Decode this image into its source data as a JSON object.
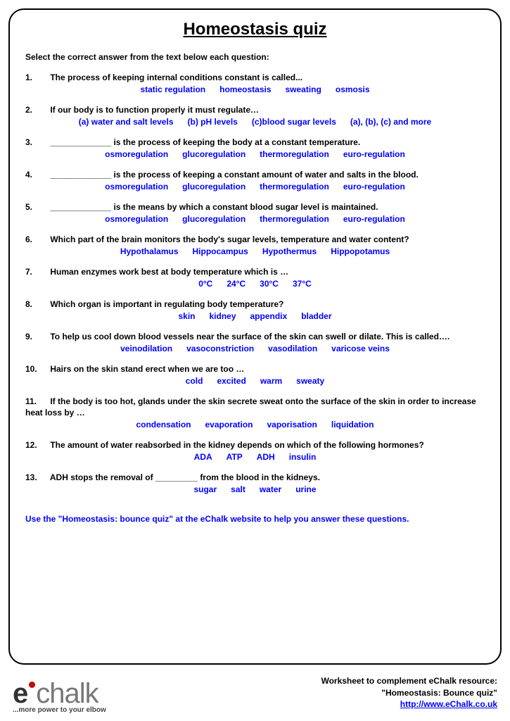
{
  "colors": {
    "text_black": "#000000",
    "option_blue": "#0000ff",
    "border": "#000000",
    "logo_dark": "#333333",
    "logo_light": "#777777",
    "logo_dot": "#cc0000",
    "background": "#ffffff"
  },
  "title": "Homeostasis quiz",
  "instruction": "Select the correct answer from the text below each question:",
  "questions": [
    {
      "num": "1.",
      "text": "The process of keeping internal conditions constant is called...",
      "options": [
        "static regulation",
        "homeostasis",
        "sweating",
        "osmosis"
      ]
    },
    {
      "num": "2.",
      "text": "If our body is to function properly it must regulate…",
      "options": [
        "(a) water and salt levels",
        "(b) pH levels",
        "(c)blood sugar levels",
        "(a), (b), (c) and more"
      ]
    },
    {
      "num": "3.",
      "text": "_____________ is the process of keeping the body at a constant temperature.",
      "options": [
        "osmoregulation",
        "glucoregulation",
        "thermoregulation",
        "euro-regulation"
      ]
    },
    {
      "num": "4.",
      "text": "_____________ is the process of keeping a constant amount of water and salts in the blood.",
      "options": [
        "osmoregulation",
        "glucoregulation",
        "thermoregulation",
        "euro-regulation"
      ]
    },
    {
      "num": "5.",
      "text": "_____________ is the means by which a constant blood sugar level is maintained.",
      "options": [
        "osmoregulation",
        "glucoregulation",
        "thermoregulation",
        "euro-regulation"
      ]
    },
    {
      "num": "6.",
      "text": "Which part of the brain monitors the body's sugar levels, temperature and water content?",
      "options": [
        "Hypothalamus",
        "Hippocampus",
        "Hypothermus",
        "Hippopotamus"
      ]
    },
    {
      "num": "7.",
      "text": "Human enzymes work best at body temperature which is …",
      "options": [
        "0°C",
        "24°C",
        "30°C",
        "37°C"
      ]
    },
    {
      "num": "8.",
      "text": "Which organ is important in regulating body temperature?",
      "options": [
        "skin",
        "kidney",
        "appendix",
        "bladder"
      ]
    },
    {
      "num": "9.",
      "text": "To help us cool down blood vessels near the surface of the skin can swell or dilate. This is called….",
      "options": [
        "veinodilation",
        "vasoconstriction",
        "vasodilation",
        "varicose veins"
      ]
    },
    {
      "num": "10.",
      "text": "Hairs on the skin stand erect when we are too …",
      "options": [
        "cold",
        "excited",
        "warm",
        "sweaty"
      ]
    },
    {
      "num": "11.",
      "text": "If the body is too hot, glands under the skin secrete sweat onto the surface of the skin in order to increase heat loss by …",
      "options": [
        "condensation",
        "evaporation",
        "vaporisation",
        "liquidation"
      ]
    },
    {
      "num": "12.",
      "text": "The amount of water reabsorbed in the kidney depends on which of the following hormones?",
      "options": [
        "ADA",
        "ATP",
        "ADH",
        "insulin"
      ]
    },
    {
      "num": "13.",
      "text": "ADH stops the removal of _________ from the blood in the kidneys.",
      "options": [
        "sugar",
        "salt",
        "water",
        "urine"
      ]
    }
  ],
  "footnote": "Use the \"Homeostasis: bounce quiz\" at the eChalk website to help you answer these questions.",
  "footer": {
    "logo_e": "e",
    "logo_chalk": "chalk",
    "tagline": "...more power to your elbow",
    "line1": "Worksheet to complement eChalk resource:",
    "line2": "\"Homeostasis: Bounce quiz\"",
    "url": "http://www.eChalk.co.uk"
  }
}
